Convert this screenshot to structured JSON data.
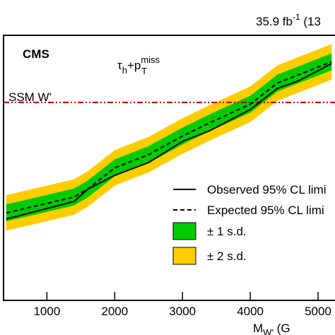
{
  "chart_data": {
    "type": "line",
    "lumi": {
      "text": "35.9 fb",
      "sup": "-1",
      "tail": " (13"
    },
    "experiment": "CMS",
    "channel": {
      "base": "τ",
      "sub": "h",
      "plus": "+p",
      "sub2": "T",
      "sup2": "miss"
    },
    "xlabel": {
      "base": "M",
      "sub": "W'",
      "tail": " (G"
    },
    "reference": {
      "name": "SSM W'",
      "value": 74.7,
      "color": "#cc0000"
    },
    "x": [
      400,
      1400,
      1600,
      2000,
      2500,
      3000,
      3400,
      4000,
      4400,
      4700,
      5200
    ],
    "series": [
      {
        "name": "Observed 95% CL limi",
        "color": "#000000",
        "style": "solid",
        "values": [
          30.7,
          37.3,
          41.9,
          47.2,
          52,
          60,
          64,
          72,
          80,
          82.7,
          89.3
        ]
      },
      {
        "name": "Expected 95% CL limi",
        "color": "#000000",
        "style": "dashed",
        "values": [
          33,
          39,
          42,
          50,
          55,
          62,
          67,
          74,
          82,
          85,
          90
        ]
      }
    ],
    "bands": [
      {
        "name": "± 2 s.d.",
        "color": "#ffcc00",
        "low": [
          26.3,
          32.3,
          35.3,
          43.3,
          48.3,
          55.3,
          60.3,
          67.3,
          75.3,
          78.3,
          83.3
        ],
        "high": [
          39.7,
          45.7,
          48.7,
          56.7,
          61.7,
          68.7,
          73.7,
          80.7,
          88.7,
          91.7,
          96.7
        ]
      },
      {
        "name": "± 1 s.d.",
        "color": "#00cc00",
        "low": [
          29.8,
          35.8,
          38.8,
          46.8,
          51.8,
          58.8,
          63.8,
          70.8,
          78.8,
          81.8,
          86.8
        ],
        "high": [
          36.2,
          42.2,
          45.2,
          53.2,
          58.2,
          65.2,
          70.2,
          77.2,
          85.2,
          88.2,
          93.2
        ]
      }
    ],
    "xlim": [
      360,
      5250
    ],
    "ylim": [
      0,
      100
    ],
    "xticks": [
      1000,
      2000,
      3000,
      4000,
      5000
    ]
  }
}
